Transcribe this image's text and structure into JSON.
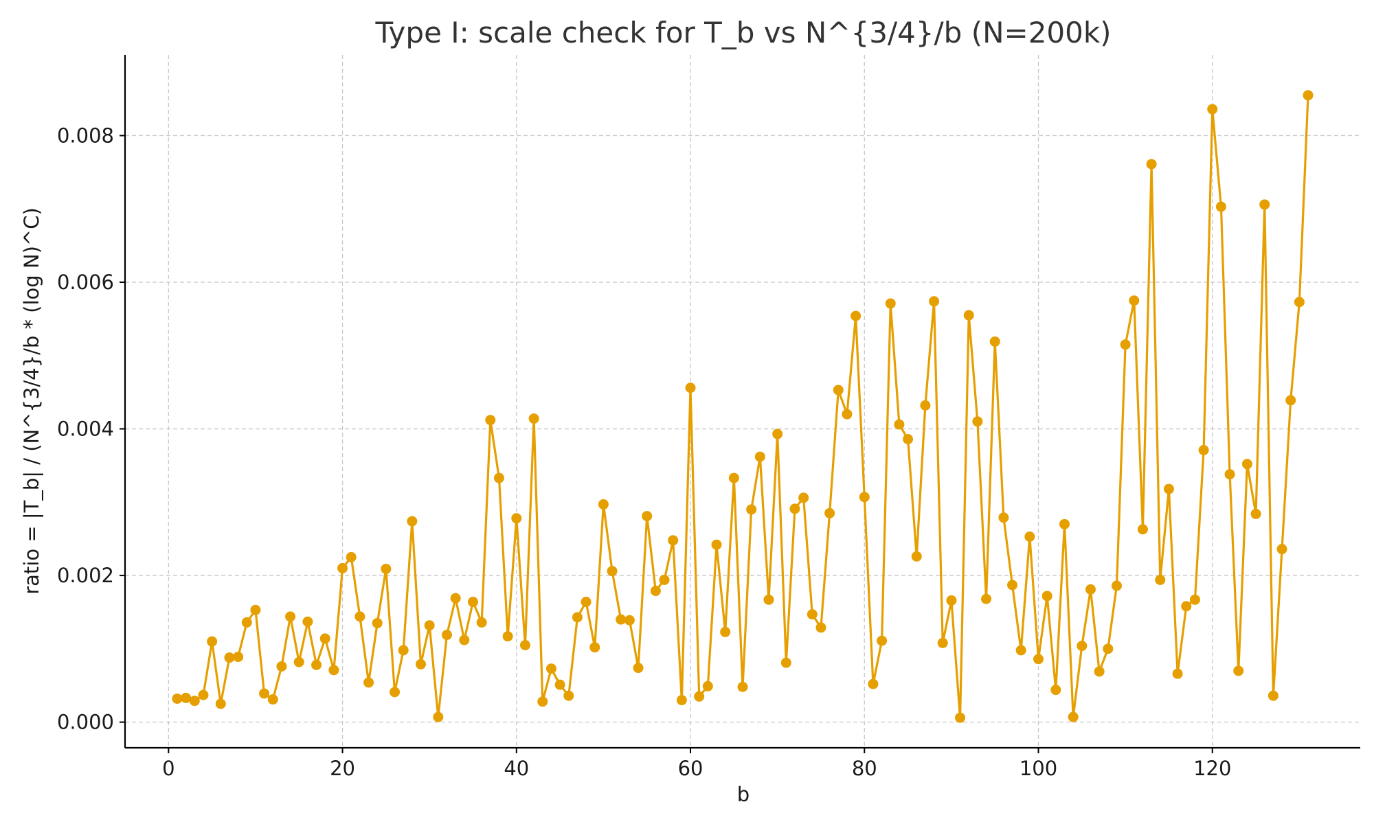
{
  "chart_data": {
    "type": "line",
    "title": "Type I: scale check for T_b vs N^{3/4}/b (N=200k)",
    "xlabel": "b",
    "ylabel": "ratio = |T_b| / (N^{3/4}/b * (log N)^C)",
    "xlim": [
      -5,
      137
    ],
    "ylim": [
      -0.00035,
      0.0091
    ],
    "xticks": [
      0,
      20,
      40,
      60,
      80,
      100,
      120
    ],
    "yticks": [
      0.0,
      0.002,
      0.004,
      0.006,
      0.008
    ],
    "xtick_labels": [
      "0",
      "20",
      "40",
      "60",
      "80",
      "100",
      "120"
    ],
    "ytick_labels": [
      "0.000",
      "0.002",
      "0.004",
      "0.006",
      "0.008"
    ],
    "grid": true,
    "marker": "circle",
    "color": "#E69F00",
    "series": [
      {
        "x": [
          1,
          2,
          3,
          4,
          5,
          6,
          7,
          8,
          9,
          10,
          11,
          12,
          13,
          14,
          15,
          16,
          17,
          18,
          19,
          20,
          21,
          22,
          23,
          24,
          25,
          26,
          27,
          28,
          29,
          30,
          31,
          32,
          33,
          34,
          35,
          36,
          37,
          38,
          39,
          40,
          41,
          42,
          43,
          44,
          45,
          46,
          47,
          48,
          49,
          50,
          51,
          52,
          53,
          54,
          55,
          56,
          57,
          58,
          59,
          60,
          61,
          62,
          63,
          64,
          65,
          66,
          67,
          68,
          69,
          70,
          71,
          72,
          73,
          74,
          75,
          76,
          77,
          78,
          79,
          80,
          81,
          82,
          83,
          84,
          85,
          86,
          87,
          88,
          89,
          90,
          91,
          92,
          93,
          94,
          95,
          96,
          97,
          98,
          99,
          100,
          101,
          102,
          103,
          104,
          105,
          106,
          107,
          108,
          109,
          110,
          111,
          112,
          113,
          114,
          115,
          116,
          117,
          118,
          119,
          120,
          121,
          122,
          123,
          124,
          125,
          126,
          127,
          128,
          129,
          130,
          131
        ],
        "y": [
          0.00032,
          0.00033,
          0.00029,
          0.00037,
          0.0011,
          0.00025,
          0.00088,
          0.00089,
          0.00136,
          0.00153,
          0.00039,
          0.00031,
          0.00076,
          0.00144,
          0.00082,
          0.00137,
          0.00078,
          0.00114,
          0.00071,
          0.0021,
          0.00225,
          0.00144,
          0.00054,
          0.00135,
          0.00209,
          0.00041,
          0.00098,
          0.00274,
          0.00079,
          0.00132,
          7e-05,
          0.00119,
          0.00169,
          0.00112,
          0.00164,
          0.00136,
          0.00412,
          0.00333,
          0.00117,
          0.00278,
          0.00105,
          0.00414,
          0.00028,
          0.00073,
          0.00051,
          0.00036,
          0.00143,
          0.00164,
          0.00102,
          0.00297,
          0.00206,
          0.0014,
          0.00139,
          0.00074,
          0.00281,
          0.00179,
          0.00194,
          0.00248,
          0.0003,
          0.00456,
          0.00035,
          0.00049,
          0.00242,
          0.00123,
          0.00333,
          0.00048,
          0.0029,
          0.00362,
          0.00167,
          0.00393,
          0.00081,
          0.00291,
          0.00306,
          0.00147,
          0.00129,
          0.00285,
          0.00453,
          0.0042,
          0.00554,
          0.00307,
          0.00052,
          0.00111,
          0.00571,
          0.00406,
          0.00386,
          0.00226,
          0.00432,
          0.00574,
          0.00108,
          0.00166,
          6e-05,
          0.00555,
          0.0041,
          0.00168,
          0.00519,
          0.00279,
          0.00187,
          0.00098,
          0.00253,
          0.00086,
          0.00172,
          0.00044,
          0.0027,
          7e-05,
          0.00104,
          0.00181,
          0.00069,
          0.001,
          0.00186,
          0.00515,
          0.00575,
          0.00263,
          0.00761,
          0.00194,
          0.00318,
          0.00066,
          0.00158,
          0.00167,
          0.00371,
          0.00836,
          0.00703,
          0.00338,
          0.0007,
          0.00352,
          0.00284,
          0.00706,
          0.00036,
          0.00236,
          0.00439,
          0.00573,
          0.00855
        ]
      }
    ]
  }
}
